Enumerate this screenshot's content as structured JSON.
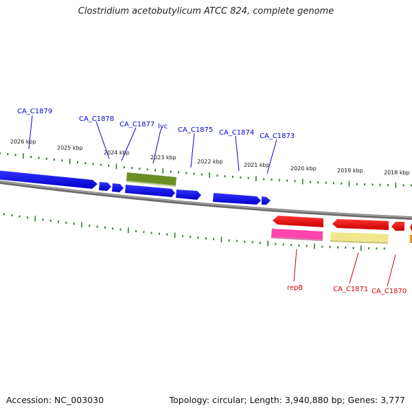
{
  "title": "Clostridium acetobutylicum ATCC 824, complete genome",
  "footer": {
    "accession": "Accession: NC_003030",
    "stats": "Topology: circular; Length: 3,940,880 bp; Genes: 3,777"
  },
  "colors": {
    "forward_gene": "#0000ff",
    "reverse_gene": "#ff0000",
    "backbone": "#888888",
    "tick": "#2e7d2e",
    "forward_label": "#0000cc",
    "reverse_label": "#cc0000"
  },
  "kbp_labels": [
    "2026 kbp",
    "2025 kbp",
    "2024 kbp",
    "2023 kbp",
    "2022 kbp",
    "2021 kbp",
    "2020 kbp",
    "2019 kbp",
    "2018 kbp"
  ],
  "forward_labels": [
    "CA_C1879",
    "CA_C1878",
    "CA_C1877",
    "lyc",
    "CA_C1875",
    "CA_C1874",
    "CA_C1873"
  ],
  "reverse_labels": [
    "repB",
    "CA_C1871",
    "CA_C1870"
  ]
}
